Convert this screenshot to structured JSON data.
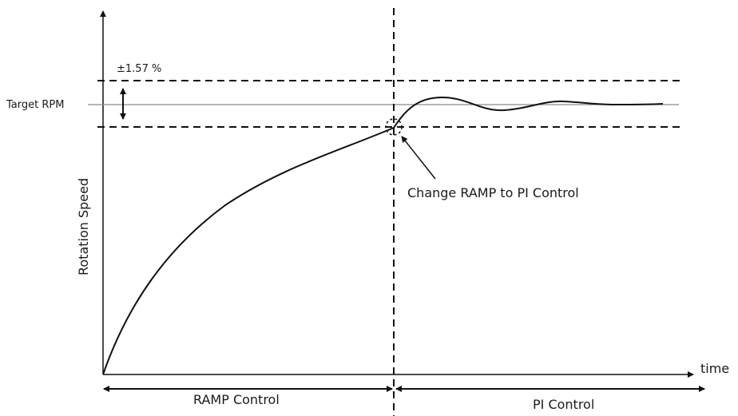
{
  "labels": {
    "tolerance": "±1.57 %",
    "target_rpm": "Target RPM",
    "y_axis": "Rotation Speed",
    "x_axis": "time",
    "annotation": "Change RAMP to PI Control",
    "phase_ramp": "RAMP Control",
    "phase_pi": "PI Control"
  },
  "colors": {
    "curve": "#111111",
    "target_line": "#8a8a8a",
    "dashed_lines": "#111111",
    "text": "#1a1a1a"
  }
}
